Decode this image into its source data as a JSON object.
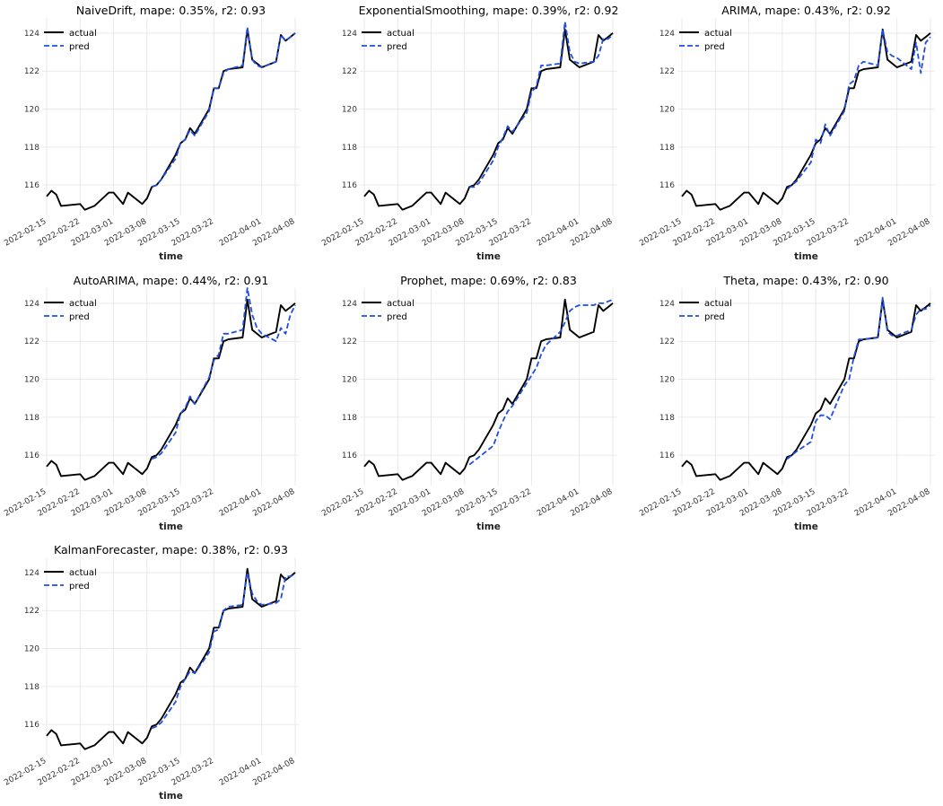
{
  "legend": {
    "actual_label": "actual",
    "pred_label": "pred"
  },
  "colors": {
    "actual": "#000000",
    "pred": "#1f4fe0"
  },
  "x_ticks": [
    "2022-02-15",
    "2022-02-22",
    "2022-03-01",
    "2022-03-08",
    "2022-03-15",
    "2022-03-22",
    "2022-04-01",
    "2022-04-08"
  ],
  "y_ticks": [
    116,
    118,
    120,
    122,
    124
  ],
  "actual": {
    "x": [
      "2022-02-15",
      "2022-02-16",
      "2022-02-17",
      "2022-02-18",
      "2022-02-22",
      "2022-02-23",
      "2022-02-24",
      "2022-02-25",
      "2022-02-28",
      "2022-03-01",
      "2022-03-02",
      "2022-03-03",
      "2022-03-04",
      "2022-03-07",
      "2022-03-08",
      "2022-03-09",
      "2022-03-10",
      "2022-03-11",
      "2022-03-14",
      "2022-03-15",
      "2022-03-16",
      "2022-03-17",
      "2022-03-18",
      "2022-03-21",
      "2022-03-22",
      "2022-03-23",
      "2022-03-24",
      "2022-03-25",
      "2022-03-28",
      "2022-03-29",
      "2022-03-30",
      "2022-03-31",
      "2022-04-01",
      "2022-04-04",
      "2022-04-05",
      "2022-04-06",
      "2022-04-07",
      "2022-04-08"
    ],
    "values": [
      115.4,
      115.7,
      115.5,
      114.9,
      115.0,
      114.7,
      114.8,
      114.9,
      115.6,
      115.6,
      115.3,
      115.0,
      115.6,
      115.0,
      115.3,
      115.9,
      116.0,
      116.3,
      117.6,
      118.2,
      118.4,
      119.0,
      118.7,
      120.0,
      121.1,
      121.1,
      122.0,
      122.1,
      122.2,
      124.2,
      122.6,
      122.4,
      122.2,
      122.5,
      123.9,
      123.6,
      123.8,
      124.0
    ]
  },
  "chart_data": [
    {
      "type": "line",
      "title": "NaiveDrift, mape: 0.35%, r2: 0.93",
      "xlabel": "time",
      "ylabel": "",
      "ylim": [
        114.4,
        124.8
      ],
      "grid": true,
      "legend": "top-left",
      "series": [
        {
          "name": "actual",
          "ref": "actual"
        },
        {
          "name": "pred",
          "x": [
            "2022-03-09",
            "2022-03-10",
            "2022-03-11",
            "2022-03-14",
            "2022-03-15",
            "2022-03-16",
            "2022-03-17",
            "2022-03-18",
            "2022-03-21",
            "2022-03-22",
            "2022-03-23",
            "2022-03-24",
            "2022-03-25",
            "2022-03-28",
            "2022-03-29",
            "2022-03-30",
            "2022-03-31",
            "2022-04-01",
            "2022-04-04",
            "2022-04-05",
            "2022-04-06",
            "2022-04-07",
            "2022-04-08"
          ],
          "values": [
            115.9,
            116.0,
            116.3,
            117.4,
            118.2,
            118.4,
            118.9,
            118.6,
            119.9,
            121.1,
            121.1,
            121.9,
            122.1,
            122.3,
            124.3,
            122.6,
            122.3,
            122.2,
            122.5,
            123.9,
            123.6,
            123.8,
            124.0
          ]
        }
      ]
    },
    {
      "type": "line",
      "title": "ExponentialSmoothing, mape: 0.39%, r2: 0.92",
      "xlabel": "time",
      "ylabel": "",
      "ylim": [
        114.4,
        124.8
      ],
      "grid": true,
      "legend": "top-left",
      "series": [
        {
          "name": "actual",
          "ref": "actual"
        },
        {
          "name": "pred",
          "x": [
            "2022-03-09",
            "2022-03-10",
            "2022-03-11",
            "2022-03-14",
            "2022-03-15",
            "2022-03-16",
            "2022-03-17",
            "2022-03-18",
            "2022-03-21",
            "2022-03-22",
            "2022-03-23",
            "2022-03-24",
            "2022-03-25",
            "2022-03-28",
            "2022-03-29",
            "2022-03-30",
            "2022-03-31",
            "2022-04-01",
            "2022-04-04",
            "2022-04-05",
            "2022-04-06",
            "2022-04-07",
            "2022-04-08"
          ],
          "values": [
            115.9,
            115.9,
            116.1,
            117.3,
            118.0,
            118.5,
            119.1,
            118.8,
            119.8,
            120.9,
            121.2,
            122.3,
            122.3,
            122.4,
            124.6,
            123.0,
            122.5,
            122.4,
            122.5,
            122.8,
            123.7,
            123.7,
            123.9
          ]
        }
      ]
    },
    {
      "type": "line",
      "title": "ARIMA, mape: 0.43%, r2: 0.92",
      "xlabel": "time",
      "ylabel": "",
      "ylim": [
        114.4,
        124.8
      ],
      "grid": true,
      "legend": "top-left",
      "series": [
        {
          "name": "actual",
          "ref": "actual"
        },
        {
          "name": "pred",
          "x": [
            "2022-03-09",
            "2022-03-10",
            "2022-03-11",
            "2022-03-14",
            "2022-03-15",
            "2022-03-16",
            "2022-03-17",
            "2022-03-18",
            "2022-03-21",
            "2022-03-22",
            "2022-03-23",
            "2022-03-24",
            "2022-03-25",
            "2022-03-28",
            "2022-03-29",
            "2022-03-30",
            "2022-03-31",
            "2022-04-01",
            "2022-04-04",
            "2022-04-05",
            "2022-04-06",
            "2022-04-07",
            "2022-04-08"
          ],
          "values": [
            115.8,
            116.0,
            116.2,
            117.2,
            118.4,
            118.2,
            119.2,
            118.6,
            119.9,
            121.3,
            121.5,
            122.3,
            122.5,
            122.3,
            124.2,
            123.0,
            122.8,
            122.7,
            122.1,
            123.5,
            121.9,
            123.5,
            123.8
          ]
        }
      ]
    },
    {
      "type": "line",
      "title": "AutoARIMA, mape: 0.44%, r2: 0.91",
      "xlabel": "time",
      "ylabel": "",
      "ylim": [
        114.4,
        124.8
      ],
      "grid": true,
      "legend": "top-left",
      "series": [
        {
          "name": "actual",
          "ref": "actual"
        },
        {
          "name": "pred",
          "x": [
            "2022-03-09",
            "2022-03-10",
            "2022-03-11",
            "2022-03-14",
            "2022-03-15",
            "2022-03-16",
            "2022-03-17",
            "2022-03-18",
            "2022-03-21",
            "2022-03-22",
            "2022-03-23",
            "2022-03-24",
            "2022-03-25",
            "2022-03-28",
            "2022-03-29",
            "2022-03-30",
            "2022-03-31",
            "2022-04-01",
            "2022-04-04",
            "2022-04-05",
            "2022-04-06",
            "2022-04-07",
            "2022-04-08"
          ],
          "values": [
            115.8,
            115.9,
            116.1,
            117.2,
            118.2,
            118.5,
            119.1,
            118.7,
            120.1,
            121.0,
            121.3,
            122.4,
            122.4,
            122.6,
            124.8,
            123.4,
            122.7,
            122.4,
            122.0,
            122.7,
            122.4,
            123.4,
            123.9
          ]
        }
      ]
    },
    {
      "type": "line",
      "title": "Prophet, mape: 0.69%, r2: 0.83",
      "xlabel": "time",
      "ylabel": "",
      "ylim": [
        114.4,
        124.8
      ],
      "grid": true,
      "legend": "top-left",
      "series": [
        {
          "name": "actual",
          "ref": "actual"
        },
        {
          "name": "pred",
          "x": [
            "2022-03-09",
            "2022-03-10",
            "2022-03-11",
            "2022-03-14",
            "2022-03-15",
            "2022-03-16",
            "2022-03-17",
            "2022-03-18",
            "2022-03-21",
            "2022-03-22",
            "2022-03-23",
            "2022-03-24",
            "2022-03-25",
            "2022-03-28",
            "2022-03-29",
            "2022-03-30",
            "2022-03-31",
            "2022-04-01",
            "2022-04-04",
            "2022-04-05",
            "2022-04-06",
            "2022-04-07",
            "2022-04-08"
          ],
          "values": [
            115.5,
            115.7,
            115.9,
            116.5,
            117.2,
            117.8,
            118.3,
            118.6,
            119.8,
            120.2,
            120.6,
            121.3,
            121.8,
            122.5,
            123.0,
            123.6,
            123.8,
            123.9,
            123.9,
            124.0,
            124.0,
            124.1,
            124.2
          ]
        }
      ]
    },
    {
      "type": "line",
      "title": "Theta, mape: 0.43%, r2: 0.90",
      "xlabel": "time",
      "ylabel": "",
      "ylim": [
        114.4,
        124.8
      ],
      "grid": true,
      "legend": "top-left",
      "series": [
        {
          "name": "actual",
          "ref": "actual"
        },
        {
          "name": "pred",
          "x": [
            "2022-03-09",
            "2022-03-10",
            "2022-03-11",
            "2022-03-14",
            "2022-03-15",
            "2022-03-16",
            "2022-03-17",
            "2022-03-18",
            "2022-03-21",
            "2022-03-22",
            "2022-03-23",
            "2022-03-24",
            "2022-03-25",
            "2022-03-28",
            "2022-03-29",
            "2022-03-30",
            "2022-03-31",
            "2022-04-01",
            "2022-04-04",
            "2022-04-05",
            "2022-04-06",
            "2022-04-07",
            "2022-04-08"
          ],
          "values": [
            115.8,
            116.0,
            116.2,
            116.7,
            117.8,
            118.1,
            118.1,
            117.9,
            119.7,
            120.0,
            121.2,
            122.1,
            122.1,
            122.2,
            124.3,
            122.5,
            122.3,
            122.3,
            122.6,
            123.4,
            123.7,
            123.7,
            123.9
          ]
        }
      ]
    },
    {
      "type": "line",
      "title": "KalmanForecaster, mape: 0.38%, r2: 0.93",
      "xlabel": "time",
      "ylabel": "",
      "ylim": [
        114.4,
        124.8
      ],
      "grid": true,
      "legend": "top-left",
      "series": [
        {
          "name": "actual",
          "ref": "actual"
        },
        {
          "name": "pred",
          "x": [
            "2022-03-09",
            "2022-03-10",
            "2022-03-11",
            "2022-03-14",
            "2022-03-15",
            "2022-03-16",
            "2022-03-17",
            "2022-03-18",
            "2022-03-21",
            "2022-03-22",
            "2022-03-23",
            "2022-03-24",
            "2022-03-25",
            "2022-03-28",
            "2022-03-29",
            "2022-03-30",
            "2022-03-31",
            "2022-04-01",
            "2022-04-04",
            "2022-04-05",
            "2022-04-06",
            "2022-04-07",
            "2022-04-08"
          ],
          "values": [
            115.8,
            115.9,
            116.1,
            117.2,
            118.0,
            118.4,
            118.8,
            118.7,
            119.8,
            120.9,
            121.0,
            122.0,
            122.2,
            122.3,
            124.0,
            122.9,
            122.5,
            122.3,
            122.4,
            122.6,
            123.8,
            123.8,
            123.9
          ]
        }
      ]
    }
  ]
}
